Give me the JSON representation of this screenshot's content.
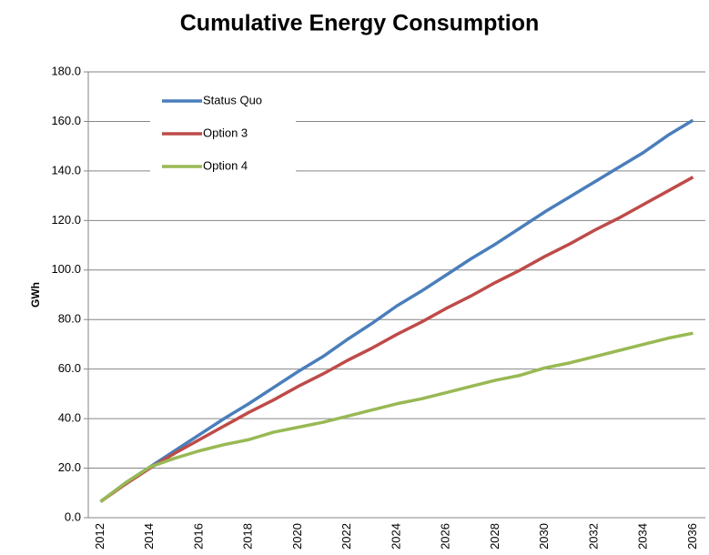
{
  "chart_data": {
    "type": "line",
    "title": "Cumulative Energy Consumption",
    "y_label": "GWh",
    "categories": [
      "2012",
      null,
      "2014",
      null,
      "2016",
      null,
      "2018",
      null,
      "2020",
      null,
      "2022",
      null,
      "2024",
      null,
      "2026",
      null,
      "2028",
      null,
      "2030",
      null,
      "2032",
      null,
      "2034",
      null,
      "2036"
    ],
    "series": [
      {
        "name": "Status Quo",
        "color": "#4a7ebb",
        "values": [
          6.5,
          14,
          20.5,
          27,
          33.5,
          40,
          46,
          52.5,
          59,
          65,
          72,
          78.5,
          85.5,
          91.5,
          98,
          104.5,
          110.5,
          117,
          123.5,
          129.5,
          135.5,
          141.5,
          147.5,
          154.5,
          160.5
        ]
      },
      {
        "name": "Option 3",
        "color": "#be4b48",
        "values": [
          6.5,
          13.5,
          20,
          26,
          31.5,
          37,
          42.5,
          47.5,
          53,
          58,
          63.5,
          68.5,
          74,
          79,
          84.5,
          89.5,
          95,
          100,
          105.5,
          110.5,
          116,
          121,
          126.5,
          132,
          137.5
        ]
      },
      {
        "name": "Option 4",
        "color": "#98b954",
        "values": [
          6.5,
          14,
          20.5,
          24,
          27,
          29.5,
          31.5,
          34.5,
          36.5,
          38.5,
          41,
          43.5,
          46,
          48,
          50.5,
          53,
          55.5,
          57.5,
          60.5,
          62.5,
          65,
          67.5,
          70,
          72.5,
          74.5
        ]
      }
    ],
    "ylim": [
      0,
      180
    ],
    "yticks": [
      {
        "value": 0,
        "label": "0.0"
      },
      {
        "value": 20,
        "label": "20.0"
      },
      {
        "value": 40,
        "label": "40.0"
      },
      {
        "value": 60,
        "label": "60.0"
      },
      {
        "value": 80,
        "label": "80.0"
      },
      {
        "value": 100,
        "label": "100.0"
      },
      {
        "value": 120,
        "label": "120.0"
      },
      {
        "value": 140,
        "label": "140.0"
      },
      {
        "value": 160,
        "label": "160.0"
      },
      {
        "value": 180,
        "label": "180.0"
      }
    ],
    "grid": true,
    "legend": "upper left"
  }
}
